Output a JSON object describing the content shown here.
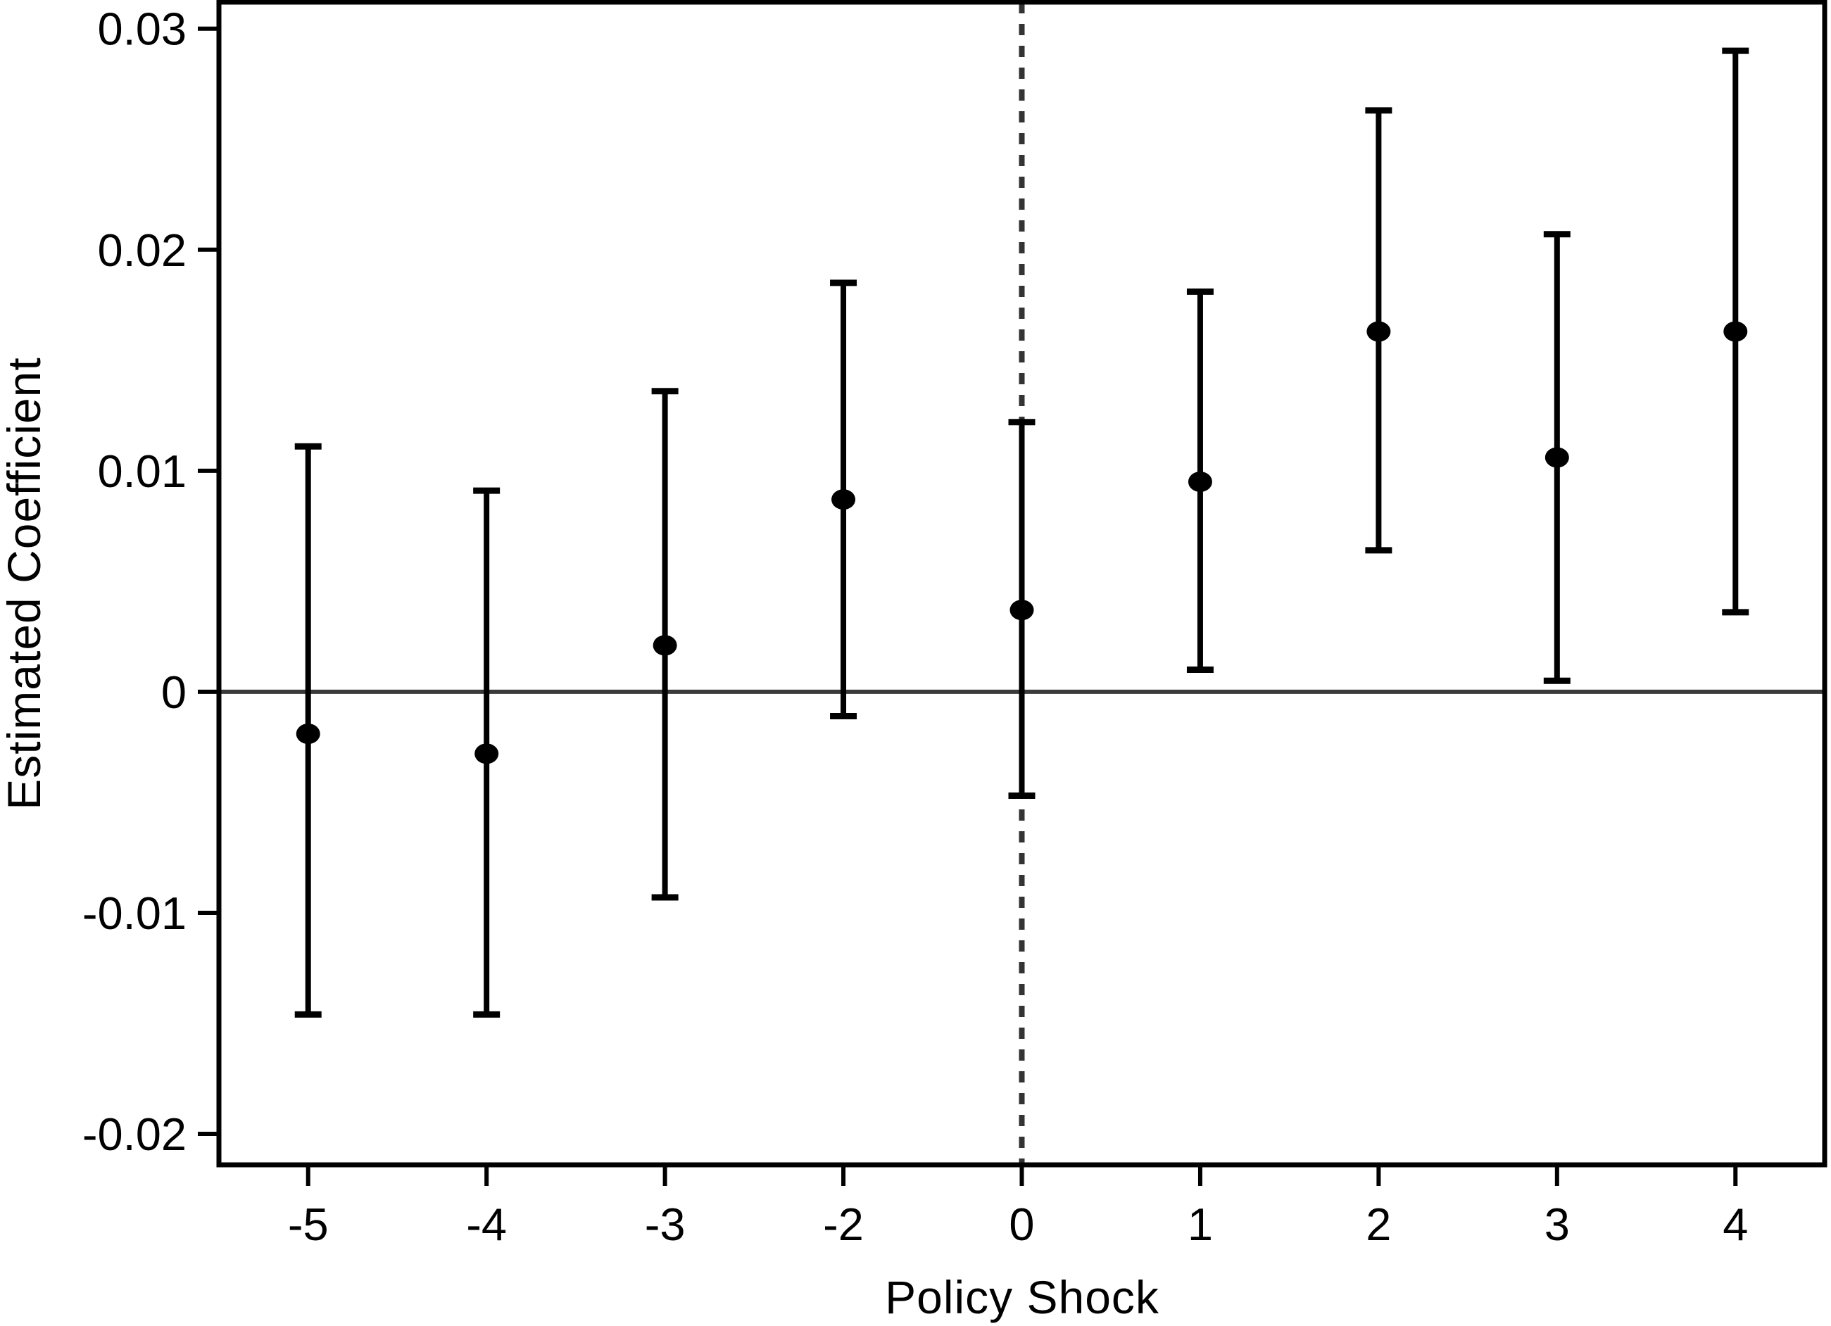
{
  "figure": {
    "background": "#ffffff",
    "frame_color": "#000000",
    "zero_line_color": "#3a3a3a",
    "dashed_line_color": "#333333",
    "point_color": "#000000",
    "error_bar_color": "#000000"
  },
  "chart_data": {
    "type": "scatter",
    "subtype": "coefficient-errorbar",
    "title": "",
    "xlabel": "Policy Shock",
    "ylabel": "Estimated Coefficient",
    "categories": [
      "-5",
      "-4",
      "-3",
      "-2",
      "0",
      "1",
      "2",
      "3",
      "4"
    ],
    "series": [
      {
        "name": "Estimated Coefficient",
        "values": [
          -0.0019,
          -0.0028,
          0.0021,
          0.0087,
          0.0037,
          0.0095,
          0.0163,
          0.0106,
          0.0163
        ],
        "ci_lower": [
          -0.0146,
          -0.0146,
          -0.0093,
          -0.0011,
          -0.0047,
          0.001,
          0.0064,
          0.0005,
          0.0036
        ],
        "ci_upper": [
          0.0111,
          0.0091,
          0.0136,
          0.0185,
          0.0122,
          0.0181,
          0.0263,
          0.0207,
          0.029
        ]
      }
    ],
    "y_ticks": [
      "0.03",
      "0.02",
      "0.01",
      "0",
      "-0.01",
      "-0.02"
    ],
    "y_tick_values": [
      0.03,
      0.02,
      0.01,
      0,
      -0.01,
      -0.02
    ],
    "ylim": [
      -0.0214,
      0.0312
    ],
    "reference_lines": {
      "horizontal_y": 0,
      "vertical_at_category": "0",
      "vertical_style": "dashed"
    },
    "grid": "off",
    "legend": "none"
  }
}
